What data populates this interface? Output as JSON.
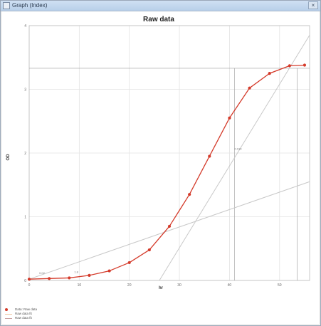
{
  "window": {
    "title": "Graph (Index)",
    "close_glyph": "×"
  },
  "legend": [
    {
      "label": "Data: Raw data",
      "color": "#d43a2a",
      "kind": "dot"
    },
    {
      "label": "Raw data fit",
      "color": "#f0c9a8",
      "kind": "line"
    },
    {
      "label": "Raw data fit",
      "color": "#c9a0a0",
      "kind": "line"
    }
  ],
  "chart_data": {
    "type": "line",
    "title": "Raw data",
    "xlabel": "hr",
    "ylabel": "OD",
    "xlim": [
      0,
      56
    ],
    "ylim": [
      0,
      4
    ],
    "xticks": [
      0,
      10,
      20,
      30,
      40,
      50
    ],
    "xtick_labels": [
      "0",
      "10",
      "20",
      "30",
      "40",
      "50"
    ],
    "yticks": [
      0,
      1,
      2,
      3,
      4
    ],
    "grid": true,
    "series": [
      {
        "name": "Raw data",
        "color": "#d43a2a",
        "x": [
          0,
          4,
          8,
          12,
          16,
          20,
          24,
          28,
          32,
          36,
          40,
          44,
          48,
          52,
          55
        ],
        "y": [
          0.02,
          0.03,
          0.04,
          0.08,
          0.15,
          0.28,
          0.48,
          0.85,
          1.35,
          1.95,
          2.55,
          3.02,
          3.25,
          3.37,
          3.38
        ]
      }
    ],
    "fit_lines": [
      {
        "color": "#c8c8c8",
        "x": [
          0,
          56
        ],
        "y": [
          0.02,
          1.55
        ]
      },
      {
        "color": "#c8c8c8",
        "x": [
          26,
          56
        ],
        "y": [
          0.0,
          3.85
        ]
      }
    ],
    "annotations": [
      {
        "text": "0.02",
        "x": 2,
        "y": 0.1
      },
      {
        "text": "1.8",
        "x": 9,
        "y": 0.12
      },
      {
        "text": "0.019",
        "x": 41,
        "y": 2.05
      }
    ],
    "reference_lines": {
      "vertical_x": [
        41,
        53.5
      ],
      "horizontal_y": [
        3.33
      ]
    }
  }
}
